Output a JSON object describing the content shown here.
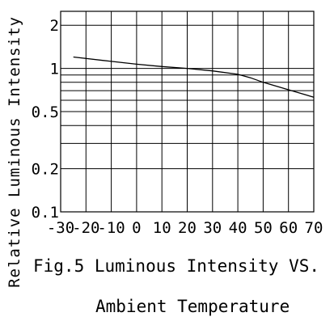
{
  "chart_data": {
    "type": "line",
    "title": "Fig.5 Luminous Intensity VS.",
    "subtitle": "Ambient Temperature",
    "xlabel": "",
    "ylabel": "Relative Luminous Intensity",
    "x_scale": "linear",
    "y_scale": "log",
    "xlim": [
      -30,
      70
    ],
    "ylim": [
      0.1,
      2.5
    ],
    "x_ticks": [
      -30,
      -20,
      -10,
      0,
      10,
      20,
      30,
      40,
      50,
      60,
      70
    ],
    "x_tick_labels": [
      "-30",
      "-20",
      "-10",
      "0",
      "10",
      "20",
      "30",
      "40",
      "50",
      "60",
      "70"
    ],
    "y_gridlines": [
      0.1,
      0.2,
      0.3,
      0.4,
      0.5,
      0.6,
      0.7,
      0.8,
      0.9,
      1,
      2
    ],
    "y_tick_labels": [
      {
        "value": 2,
        "label": "2"
      },
      {
        "value": 1,
        "label": "1"
      },
      {
        "value": 0.5,
        "label": "0.5"
      },
      {
        "value": 0.2,
        "label": "0.2"
      },
      {
        "value": 0.1,
        "label": "0.1"
      }
    ],
    "grid": true,
    "series": [
      {
        "x": [
          -25,
          -10,
          0,
          10,
          20,
          30,
          40,
          45,
          50,
          60,
          70
        ],
        "y": [
          1.2,
          1.12,
          1.07,
          1.03,
          1.0,
          0.96,
          0.91,
          0.86,
          0.8,
          0.71,
          0.63
        ]
      }
    ]
  }
}
